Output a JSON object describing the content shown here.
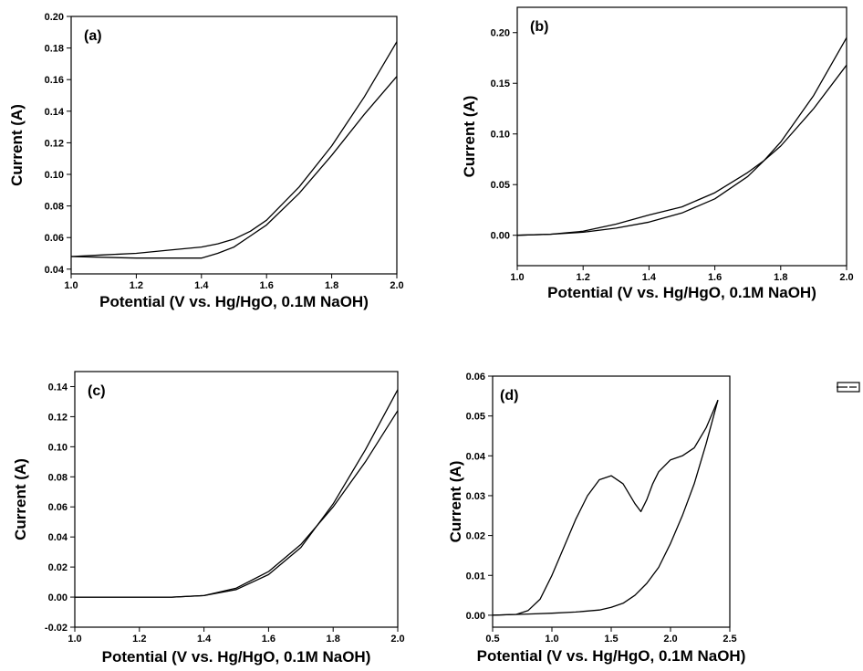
{
  "chart_data": [
    {
      "type": "line",
      "panel_label": "(a)",
      "xlabel": "Potential (V vs. Hg/HgO, 0.1M NaOH)",
      "ylabel": "Current (A)",
      "xlim": [
        1.0,
        2.0
      ],
      "ylim": [
        0.037,
        0.2
      ],
      "xticks": [
        1.0,
        1.2,
        1.4,
        1.6,
        1.8,
        2.0
      ],
      "xtick_labels": [
        "1.0",
        "1.2",
        "1.4",
        "1.6",
        "1.8",
        "2.0"
      ],
      "yticks": [
        0.04,
        0.06,
        0.08,
        0.1,
        0.12,
        0.14,
        0.16,
        0.18,
        0.2
      ],
      "ytick_labels": [
        "0.04",
        "0.06",
        "0.08",
        "0.10",
        "0.12",
        "0.14",
        "0.16",
        "0.18",
        "0.20"
      ],
      "series": [
        {
          "x": [
            1.0,
            1.1,
            1.2,
            1.3,
            1.4,
            1.45,
            1.5,
            1.55,
            1.6,
            1.7,
            1.8,
            1.9,
            2.0
          ],
          "y": [
            0.048,
            0.049,
            0.05,
            0.052,
            0.054,
            0.056,
            0.059,
            0.064,
            0.071,
            0.092,
            0.118,
            0.149,
            0.184
          ]
        },
        {
          "x": [
            1.0,
            1.2,
            1.4,
            1.45,
            1.5,
            1.55,
            1.6,
            1.7,
            1.8,
            1.9,
            2.0
          ],
          "y": [
            0.048,
            0.047,
            0.047,
            0.05,
            0.054,
            0.061,
            0.068,
            0.088,
            0.112,
            0.138,
            0.162
          ]
        }
      ]
    },
    {
      "type": "line",
      "panel_label": "(b)",
      "xlabel": "Potential (V vs. Hg/HgO, 0.1M NaOH)",
      "ylabel": "Current (A)",
      "xlim": [
        1.0,
        2.0
      ],
      "ylim": [
        -0.03,
        0.225
      ],
      "xticks": [
        1.0,
        1.2,
        1.4,
        1.6,
        1.8,
        2.0
      ],
      "xtick_labels": [
        "1.0",
        "1.2",
        "1.4",
        "1.6",
        "1.8",
        "2.0"
      ],
      "yticks": [
        0.0,
        0.05,
        0.1,
        0.15,
        0.2
      ],
      "ytick_labels": [
        "0.00",
        "0.05",
        "0.10",
        "0.15",
        "0.20"
      ],
      "series": [
        {
          "x": [
            1.0,
            1.1,
            1.2,
            1.3,
            1.4,
            1.5,
            1.6,
            1.7,
            1.75,
            1.8,
            1.9,
            2.0
          ],
          "y": [
            0.0,
            0.001,
            0.004,
            0.011,
            0.02,
            0.028,
            0.042,
            0.062,
            0.074,
            0.088,
            0.125,
            0.168
          ]
        },
        {
          "x": [
            1.0,
            1.1,
            1.2,
            1.3,
            1.4,
            1.5,
            1.6,
            1.7,
            1.75,
            1.8,
            1.9,
            2.0
          ],
          "y": [
            0.0,
            0.001,
            0.003,
            0.007,
            0.013,
            0.022,
            0.036,
            0.058,
            0.074,
            0.092,
            0.138,
            0.195
          ]
        }
      ]
    },
    {
      "type": "line",
      "panel_label": "(c)",
      "xlabel": "Potential (V vs. Hg/HgO, 0.1M NaOH)",
      "ylabel": "Current (A)",
      "xlim": [
        1.0,
        2.0
      ],
      "ylim": [
        -0.02,
        0.15
      ],
      "xticks": [
        1.0,
        1.2,
        1.4,
        1.6,
        1.8,
        2.0
      ],
      "xtick_labels": [
        "1.0",
        "1.2",
        "1.4",
        "1.6",
        "1.8",
        "2.0"
      ],
      "yticks": [
        -0.02,
        0.0,
        0.02,
        0.04,
        0.06,
        0.08,
        0.1,
        0.12,
        0.14
      ],
      "ytick_labels": [
        "-0.02",
        "0.00",
        "0.02",
        "0.04",
        "0.06",
        "0.08",
        "0.10",
        "0.12",
        "0.14"
      ],
      "series": [
        {
          "x": [
            1.0,
            1.3,
            1.4,
            1.5,
            1.6,
            1.7,
            1.8,
            1.9,
            2.0
          ],
          "y": [
            0.0,
            0.0,
            0.001,
            0.006,
            0.017,
            0.035,
            0.06,
            0.09,
            0.124
          ]
        },
        {
          "x": [
            1.0,
            1.3,
            1.4,
            1.5,
            1.6,
            1.7,
            1.8,
            1.9,
            2.0
          ],
          "y": [
            0.0,
            0.0,
            0.001,
            0.005,
            0.015,
            0.033,
            0.062,
            0.098,
            0.138
          ]
        }
      ]
    },
    {
      "type": "line",
      "panel_label": "(d)",
      "xlabel": "Potential (V vs. Hg/HgO, 0.1M NaOH)",
      "ylabel": "Current (A)",
      "xlim": [
        0.5,
        2.5
      ],
      "ylim": [
        -0.003,
        0.06
      ],
      "xticks": [
        0.5,
        1.0,
        1.5,
        2.0,
        2.5
      ],
      "xtick_labels": [
        "0.5",
        "1.0",
        "1.5",
        "2.0",
        "2.5"
      ],
      "yticks": [
        0.0,
        0.01,
        0.02,
        0.03,
        0.04,
        0.05,
        0.06
      ],
      "ytick_labels": [
        "0.00",
        "0.01",
        "0.02",
        "0.03",
        "0.04",
        "0.05",
        "0.06"
      ],
      "series": [
        {
          "x": [
            0.5,
            0.7,
            0.8,
            0.9,
            1.0,
            1.1,
            1.2,
            1.3,
            1.4,
            1.5,
            1.6,
            1.7,
            1.75,
            1.8,
            1.85,
            1.9,
            2.0,
            2.1,
            2.2,
            2.3,
            2.4
          ],
          "y": [
            0.0,
            0.0002,
            0.0012,
            0.004,
            0.01,
            0.017,
            0.024,
            0.03,
            0.034,
            0.035,
            0.033,
            0.028,
            0.026,
            0.029,
            0.033,
            0.036,
            0.039,
            0.04,
            0.042,
            0.047,
            0.054
          ]
        },
        {
          "x": [
            0.5,
            0.8,
            1.0,
            1.2,
            1.4,
            1.5,
            1.6,
            1.7,
            1.8,
            1.9,
            2.0,
            2.1,
            2.2,
            2.3,
            2.4
          ],
          "y": [
            0.0,
            0.0003,
            0.0005,
            0.0008,
            0.0013,
            0.002,
            0.003,
            0.005,
            0.008,
            0.012,
            0.018,
            0.025,
            0.033,
            0.043,
            0.054
          ]
        }
      ]
    }
  ]
}
